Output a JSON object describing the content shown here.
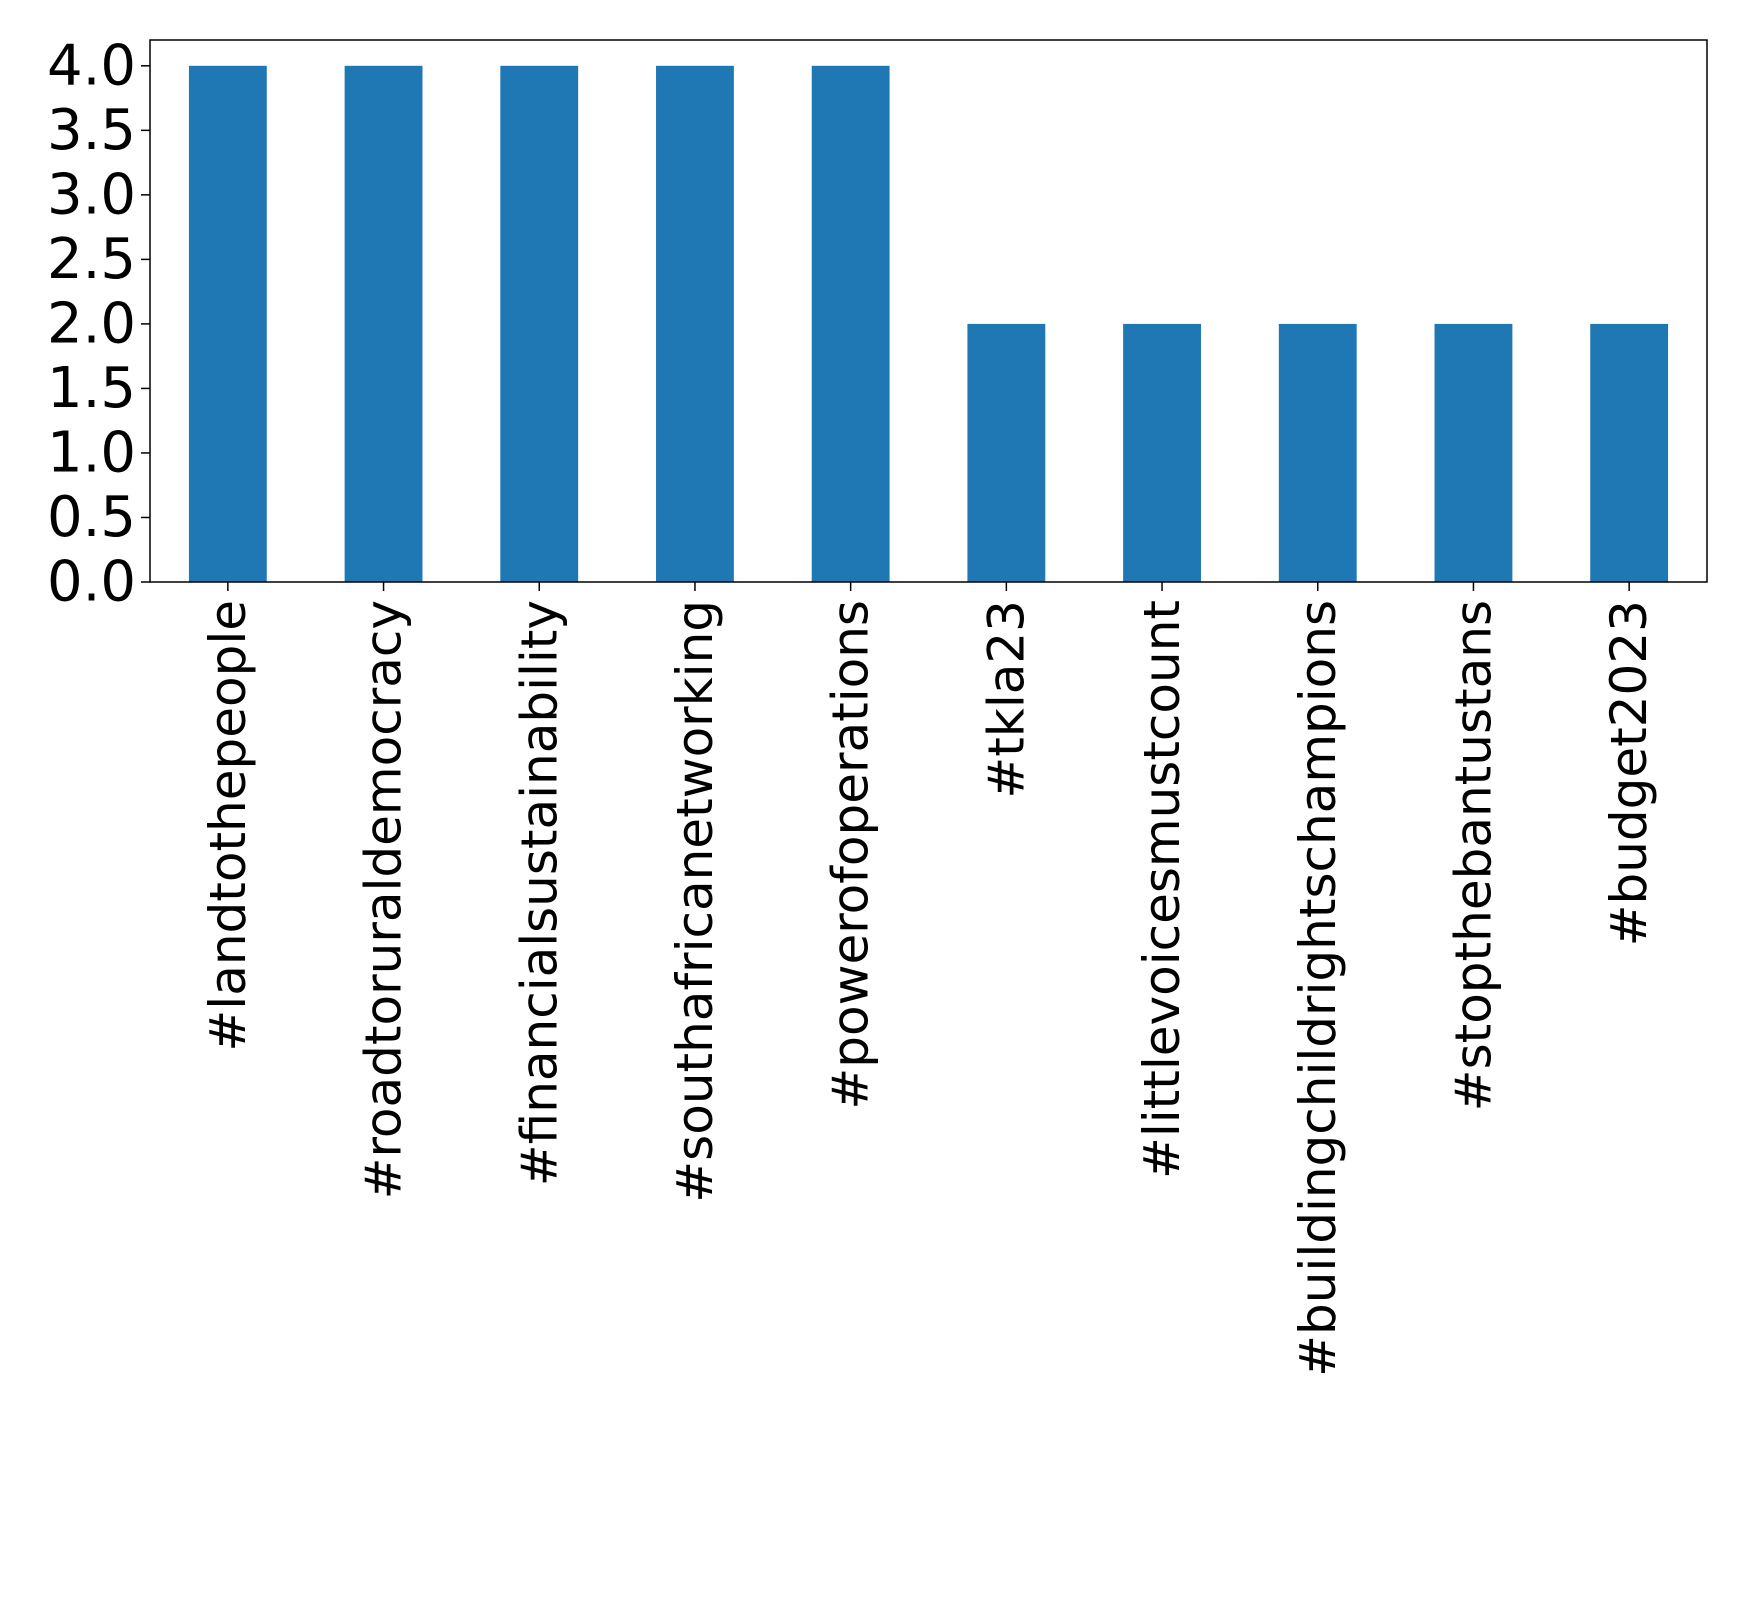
{
  "chart_data": {
    "type": "bar",
    "title": "",
    "xlabel": "",
    "ylabel": "",
    "categories": [
      "#landtothepeople",
      "#roadtoruraldemocracy",
      "#financialsustainability",
      "#southafricanetworking",
      "#powerofoperations",
      "#tkla23",
      "#littlevoicesmustcount",
      "#buildingchildrightschampions",
      "#stopthebantustans",
      "#budget2023"
    ],
    "values": [
      4,
      4,
      4,
      4,
      4,
      2,
      2,
      2,
      2,
      2
    ],
    "ylim": [
      0,
      4.2
    ],
    "yticks": [
      "0.0",
      "0.5",
      "1.0",
      "1.5",
      "2.0",
      "2.5",
      "3.0",
      "3.5",
      "4.0"
    ],
    "grid": false,
    "legend": "none",
    "colors": {
      "bar": "#1f77b4",
      "axis": "#000000",
      "background": "#ffffff"
    }
  }
}
